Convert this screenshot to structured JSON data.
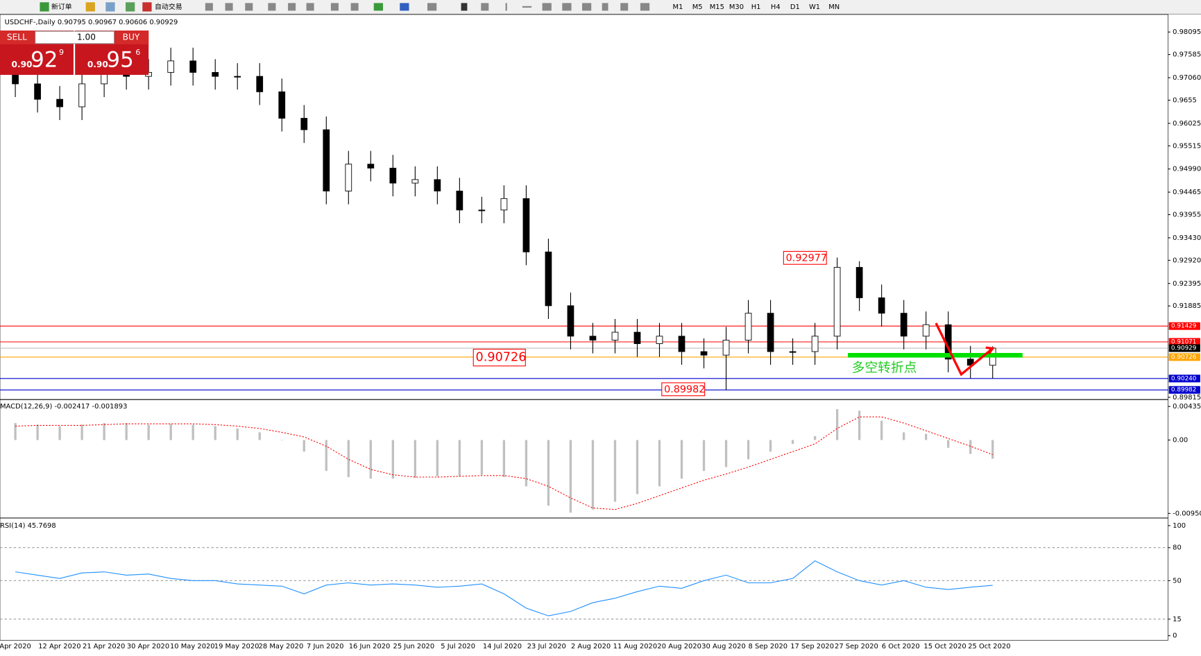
{
  "toolbar": {
    "new_order": "新订单",
    "auto_trading": "自动交易",
    "timeframes": [
      "M1",
      "M5",
      "M15",
      "M30",
      "H1",
      "H4",
      "D1",
      "W1",
      "MN"
    ]
  },
  "trade_panel": {
    "sell": "SELL",
    "buy": "BUY",
    "lots": "1.00",
    "bid": {
      "big": "0.90",
      "pips": "92",
      "point": "9"
    },
    "ask": {
      "big": "0.90",
      "pips": "95",
      "point": "6"
    }
  },
  "chart_data": [
    {
      "type": "candlestick",
      "title": "USDCHF-,Daily  0.90795 0.90967 0.90606 0.90929",
      "open": [
        0.972,
        0.9692,
        0.9657,
        0.964,
        0.9692,
        0.9726,
        0.9709,
        0.9718,
        0.9744,
        0.9718,
        0.9709,
        0.9709,
        0.9674,
        0.9614,
        0.9588,
        0.9449,
        0.951,
        0.9501,
        0.9467,
        0.9475,
        0.9449,
        0.9406,
        0.9406,
        0.9432,
        0.9311,
        0.9189,
        0.912,
        0.9111,
        0.9129,
        0.9103,
        0.912,
        0.9085,
        0.9077,
        0.9111,
        0.9172,
        0.9085,
        0.9085,
        0.912,
        0.9276,
        0.9207,
        0.9172,
        0.912,
        0.9146,
        0.9068,
        0.9054
      ],
      "high": [
        0.975,
        0.9722,
        0.9687,
        0.9722,
        0.9756,
        0.9756,
        0.9748,
        0.9774,
        0.9774,
        0.9748,
        0.9739,
        0.9739,
        0.9704,
        0.9644,
        0.9618,
        0.954,
        0.954,
        0.9531,
        0.9505,
        0.9505,
        0.9479,
        0.9436,
        0.9462,
        0.9462,
        0.9341,
        0.9219,
        0.915,
        0.9159,
        0.9159,
        0.915,
        0.915,
        0.9115,
        0.9141,
        0.9202,
        0.9202,
        0.9115,
        0.915,
        0.9298,
        0.929,
        0.9237,
        0.9202,
        0.9176,
        0.9176,
        0.9098,
        0.9097
      ],
      "low": [
        0.9662,
        0.9627,
        0.961,
        0.961,
        0.9662,
        0.9679,
        0.9679,
        0.9688,
        0.9688,
        0.9679,
        0.9679,
        0.9644,
        0.9584,
        0.9558,
        0.9419,
        0.9419,
        0.9471,
        0.9437,
        0.9437,
        0.9419,
        0.9376,
        0.9376,
        0.9376,
        0.9281,
        0.9159,
        0.909,
        0.9081,
        0.9081,
        0.9073,
        0.9073,
        0.9055,
        0.9047,
        0.8998,
        0.9081,
        0.9055,
        0.9055,
        0.9055,
        0.909,
        0.9177,
        0.9142,
        0.909,
        0.909,
        0.9038,
        0.9024,
        0.9024
      ],
      "close": [
        0.9692,
        0.9657,
        0.964,
        0.9692,
        0.9726,
        0.9709,
        0.9718,
        0.9744,
        0.9718,
        0.9709,
        0.9709,
        0.9674,
        0.9614,
        0.9588,
        0.9449,
        0.951,
        0.9501,
        0.9467,
        0.9475,
        0.9449,
        0.9406,
        0.9406,
        0.9432,
        0.9311,
        0.9189,
        0.912,
        0.9111,
        0.9129,
        0.9103,
        0.912,
        0.9085,
        0.9077,
        0.9111,
        0.9172,
        0.9085,
        0.9085,
        0.912,
        0.9276,
        0.9207,
        0.9172,
        0.912,
        0.9146,
        0.9068,
        0.9054,
        0.90929
      ],
      "ylim": [
        0.8978,
        0.9844
      ],
      "yticks": [
        0.98095,
        0.97585,
        {
          "value": 0.9706,
          "label": "0.97060"
        },
        0.9655,
        0.96025,
        0.95515,
        {
          "value": 0.9499,
          "label": "0.94990"
        },
        0.94465,
        0.93955,
        {
          "value": 0.9343,
          "label": "0.93430"
        },
        {
          "value": 0.9292,
          "label": "0.92920"
        },
        0.92395,
        0.91885,
        0.89815
      ],
      "price_lines": [
        {
          "value": 0.91429,
          "color": "#ff0000",
          "label_bg": "#ff0000"
        },
        {
          "value": 0.91071,
          "color": "#ff0000",
          "label_bg": "#ff0000"
        },
        {
          "value": 0.90929,
          "color": "#c0c0c0",
          "label_bg": "#000000"
        },
        {
          "value": 0.90726,
          "color": "#ffa500",
          "label_bg": "#ffa500"
        },
        {
          "value": 0.9024,
          "label": "0.90240",
          "color": "#0000cd",
          "label_bg": "#0000cd"
        },
        {
          "value": 0.89982,
          "color": "#0000cd",
          "label_bg": "#0000cd"
        }
      ],
      "annotations": [
        "0.92977",
        "0.90726",
        "0.89982",
        "多空转折点"
      ],
      "x_tick_labels": [
        "Apr 2020",
        "12 Apr 2020",
        "21 Apr 2020",
        "30 Apr 2020",
        "10 May 2020",
        "19 May 2020",
        "28 May 2020",
        "7 Jun 2020",
        "16 Jun 2020",
        "25 Jun 2020",
        "5 Jul 2020",
        "14 Jul 2020",
        "23 Jul 2020",
        "2 Aug 2020",
        "11 Aug 2020",
        "20 Aug 2020",
        "30 Aug 2020",
        "8 Sep 2020",
        "17 Sep 2020",
        "27 Sep 2020",
        "6 Oct 2020",
        "15 Oct 2020",
        "25 Oct 2020"
      ]
    },
    {
      "type": "macd",
      "title": "MACD(12,26,9) -0.002417 -0.001893",
      "series": [
        {
          "name": "MACD",
          "color": "#c0c0c0",
          "values": [
            0.0022,
            0.002,
            0.0018,
            0.002,
            0.0022,
            0.0022,
            0.002,
            0.0021,
            0.002,
            0.0018,
            0.0015,
            0.001,
            0.0,
            -0.0015,
            -0.004,
            -0.0048,
            -0.005,
            -0.005,
            -0.0049,
            -0.0047,
            -0.0047,
            -0.0045,
            -0.0048,
            -0.006,
            -0.0085,
            -0.0094,
            -0.009,
            -0.008,
            -0.007,
            -0.006,
            -0.005,
            -0.004,
            -0.0035,
            -0.0025,
            -0.0015,
            -0.0005,
            0.0005,
            0.004,
            0.0038,
            0.0025,
            0.001,
            0.0008,
            -0.001,
            -0.0018,
            -0.002417
          ]
        },
        {
          "name": "Signal",
          "color": "#ff0000",
          "values": [
            0.0018,
            0.0019,
            0.0019,
            0.0019,
            0.002,
            0.0021,
            0.0021,
            0.0021,
            0.0021,
            0.002,
            0.0018,
            0.0015,
            0.001,
            0.0004,
            -0.0008,
            -0.0025,
            -0.0038,
            -0.0045,
            -0.0048,
            -0.0048,
            -0.0047,
            -0.0046,
            -0.0046,
            -0.005,
            -0.006,
            -0.0075,
            -0.0088,
            -0.009,
            -0.0082,
            -0.0072,
            -0.0062,
            -0.0052,
            -0.0044,
            -0.0035,
            -0.0025,
            -0.0015,
            -0.0005,
            0.0015,
            0.003,
            0.003,
            0.0022,
            0.0012,
            0.0002,
            -0.0008,
            -0.001893
          ]
        }
      ],
      "ylim": [
        -0.009504,
        0.004351
      ],
      "yticks": [
        0.004351,
        {
          "value": 0,
          "label": "0.00"
        },
        -0.009504
      ]
    },
    {
      "type": "rsi",
      "title": "RSI(14) 45.7698",
      "color": "#1e90ff",
      "values": [
        58,
        55,
        52,
        57,
        58,
        55,
        56,
        52,
        50,
        50,
        47,
        46,
        45,
        38,
        46,
        48,
        46,
        47,
        46,
        44,
        45,
        47,
        38,
        25,
        18,
        22,
        30,
        34,
        40,
        45,
        43,
        50,
        55,
        48,
        48,
        52,
        68,
        58,
        50,
        46,
        50,
        44,
        42,
        44,
        45.7698
      ],
      "ylim": [
        0,
        100
      ],
      "yticks": [
        100,
        80,
        50,
        15,
        0
      ],
      "levels": [
        80,
        50,
        15
      ]
    }
  ]
}
